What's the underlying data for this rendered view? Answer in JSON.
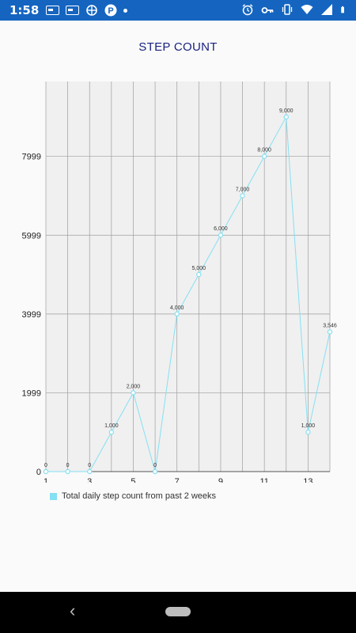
{
  "status_bar": {
    "time": "1:58",
    "left_icons": [
      "message-card-icon",
      "message-card-icon",
      "location-target-icon",
      "parking-p-icon",
      "dot-icon"
    ],
    "right_icons": [
      "alarm-clock-icon",
      "vpn-key-icon",
      "vibrate-icon",
      "wifi-icon",
      "signal-icon",
      "battery-icon"
    ]
  },
  "title": "STEP COUNT",
  "legend": {
    "label": "Total daily step count from past 2 weeks",
    "color": "#84e0f2"
  },
  "chart_data": {
    "type": "line",
    "x": [
      1,
      2,
      3,
      4,
      5,
      6,
      7,
      8,
      9,
      10,
      11,
      12,
      13,
      14
    ],
    "series": [
      {
        "name": "Total daily step count from past 2 weeks",
        "values": [
          0,
          0,
          0,
          1000,
          2000,
          0,
          4000,
          5000,
          6000,
          7000,
          8000,
          9000,
          1000,
          3546
        ],
        "data_labels": [
          "0",
          "0",
          "0",
          "1,000",
          "2,000",
          "0",
          "4,000",
          "5,000",
          "6,000",
          "7,000",
          "8,000",
          "9,000",
          "1,000",
          "3,546"
        ]
      }
    ],
    "x_ticks": [
      1,
      3,
      5,
      7,
      9,
      11,
      13
    ],
    "y_ticks": [
      0,
      1999,
      3999,
      5999,
      7999
    ],
    "xlim": [
      1,
      14
    ],
    "ylim": [
      0,
      9900
    ],
    "grid": true,
    "legend_position": "bottom-left",
    "line_color": "#84e0f2",
    "plot_background": "#f0f0f0",
    "grid_color": "#9e9e9e"
  },
  "nav": {
    "back_glyph": "‹"
  }
}
